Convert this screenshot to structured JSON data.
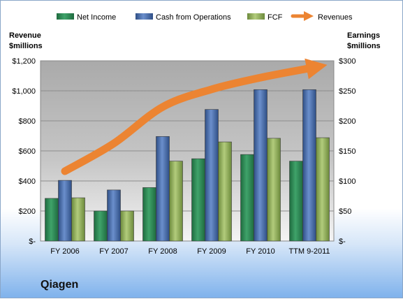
{
  "company": "Qiagen",
  "chart_data": {
    "type": "bar",
    "categories": [
      "FY 2006",
      "FY 2007",
      "FY 2008",
      "FY 2009",
      "FY 2010",
      "TTM 9-2011"
    ],
    "left_axis_title": [
      "Revenue",
      "$millions"
    ],
    "right_axis_title": [
      "Earnings",
      "$millions"
    ],
    "left_ticks": [
      "$-",
      "$200",
      "$400",
      "$600",
      "$800",
      "$1,000",
      "$1,200"
    ],
    "right_ticks": [
      "$-",
      "$50",
      "$100",
      "$150",
      "$200",
      "$250",
      "$300"
    ],
    "left_ylim": [
      0,
      1200
    ],
    "right_ylim": [
      0,
      300
    ],
    "grid": true,
    "legend_position": "top",
    "series": [
      {
        "name": "Net Income",
        "axis": "right",
        "color": "#2e8b57",
        "values": [
          71,
          50,
          89,
          137,
          144,
          133
        ]
      },
      {
        "name": "Cash from Operations",
        "axis": "right",
        "color": "#4a6fae",
        "values": [
          101,
          85,
          174,
          219,
          252,
          252
        ]
      },
      {
        "name": "FCF",
        "axis": "right",
        "color": "#8fae5a",
        "values": [
          72,
          50,
          133,
          165,
          171,
          172
        ]
      },
      {
        "name": "Revenues",
        "axis": "left",
        "type": "arrow",
        "color": "#ec8432",
        "values": [
          465,
          650,
          893,
          1010,
          1088,
          1150
        ]
      }
    ]
  }
}
